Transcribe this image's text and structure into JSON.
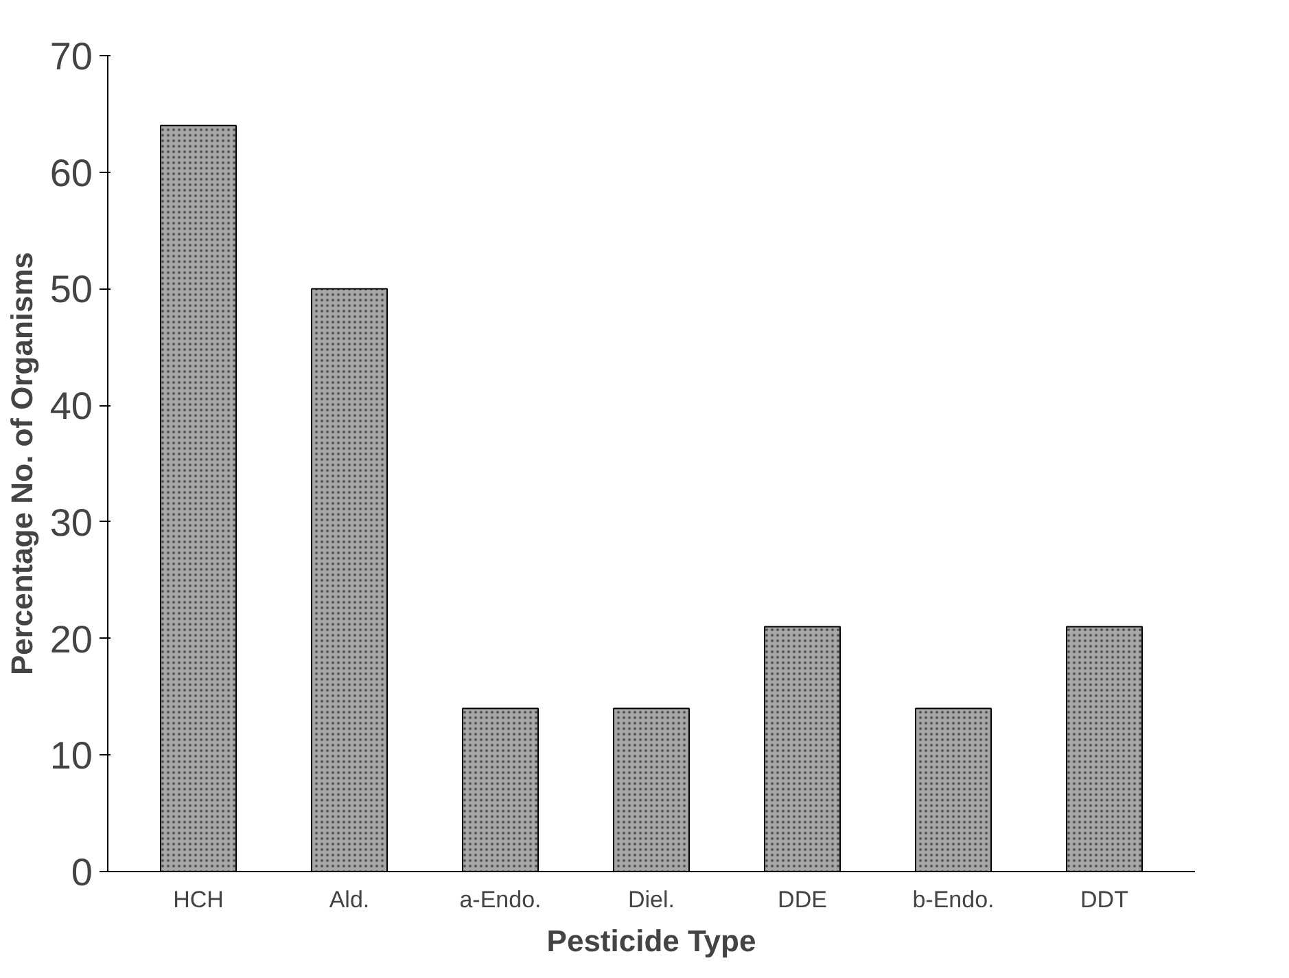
{
  "chart_data": {
    "type": "bar",
    "xlabel": "Pesticide Type",
    "ylabel": "Percentage No. of Organisms",
    "categories": [
      "HCH",
      "Ald.",
      "a-Endo.",
      "Diel.",
      "DDE",
      "b-Endo.",
      "DDT"
    ],
    "values": [
      64,
      50,
      14,
      14,
      21,
      14,
      21
    ],
    "color": "#a6a6a6",
    "ylim": [
      0,
      70
    ],
    "yticks": [
      0,
      10,
      20,
      30,
      40,
      50,
      60,
      70
    ],
    "grid": false
  }
}
